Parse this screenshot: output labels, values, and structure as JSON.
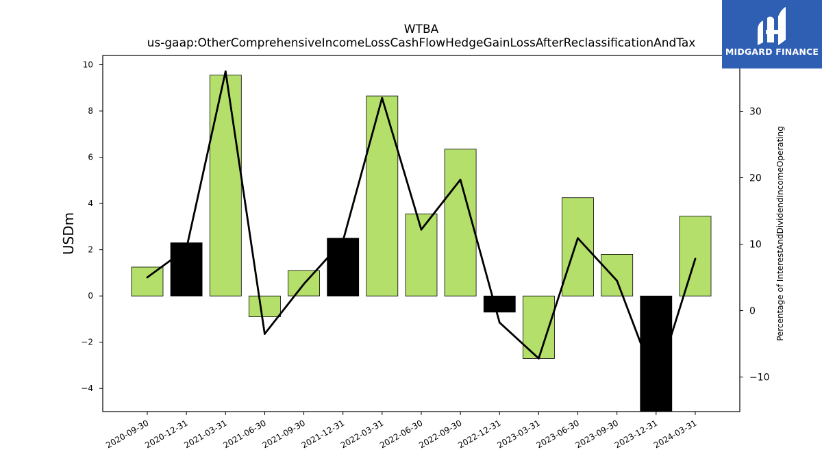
{
  "chart_data": {
    "type": "bar",
    "title": "WTBA",
    "subtitle": "us-gaap:OtherComprehensiveIncomeLossCashFlowHedgeGainLossAfterReclassificationAndTax",
    "ylabel": "USDm",
    "y2label": "Percentage of InterestAndDividendIncomeOperating",
    "categories": [
      "2020-09-30",
      "2020-12-31",
      "2021-03-31",
      "2021-06-30",
      "2021-09-30",
      "2021-12-31",
      "2022-03-31",
      "2022-06-30",
      "2022-09-30",
      "2022-12-31",
      "2023-03-31",
      "2023-06-30",
      "2023-09-30",
      "2023-12-31",
      "2024-03-31"
    ],
    "series": [
      {
        "type": "bar",
        "axis": "left",
        "values": [
          1.25,
          2.3,
          9.55,
          -0.9,
          1.1,
          2.5,
          8.65,
          3.55,
          6.35,
          -0.7,
          -2.7,
          4.25,
          1.8,
          -5.0,
          3.45
        ],
        "colors": [
          "#b5df6b",
          "#000000",
          "#b5df6b",
          "#b5df6b",
          "#b5df6b",
          "#000000",
          "#b5df6b",
          "#b5df6b",
          "#b5df6b",
          "#000000",
          "#b5df6b",
          "#b5df6b",
          "#b5df6b",
          "#000000",
          "#b5df6b"
        ]
      },
      {
        "type": "line",
        "axis": "right",
        "color": "#000000",
        "values": [
          5.0,
          9.3,
          36.0,
          -3.5,
          4.0,
          10.5,
          32.0,
          12.2,
          19.7,
          -1.8,
          -7.2,
          10.9,
          4.5,
          -11.0,
          7.8
        ]
      }
    ],
    "ylim": [
      -5.0,
      10.4
    ],
    "y2lim": [
      -15.2,
      38.4
    ],
    "yticks": [
      -4,
      -2,
      0,
      2,
      4,
      6,
      8,
      10
    ],
    "yticklabels": [
      "−4",
      "−2",
      "0",
      "2",
      "4",
      "6",
      "8",
      "10"
    ],
    "y2ticks": [
      -10,
      0,
      10,
      20,
      30
    ],
    "y2ticklabels": [
      "−10",
      "0",
      "10",
      "20",
      "30"
    ],
    "grid": false,
    "legend": "none"
  },
  "logo": {
    "text": "MIDGARD FINANCE"
  }
}
